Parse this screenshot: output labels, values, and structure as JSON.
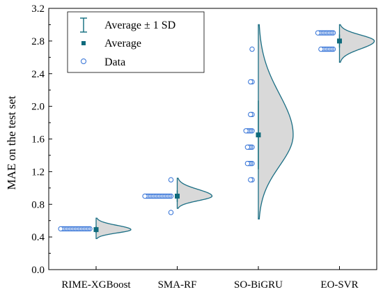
{
  "chart_data": {
    "type": "violin",
    "title": "",
    "xlabel": "",
    "ylabel": "MAE on the test set",
    "ylim": [
      0.0,
      3.2
    ],
    "yticks": [
      0.0,
      0.4,
      0.8,
      1.2,
      1.6,
      2.0,
      2.4,
      2.8,
      3.2
    ],
    "ytick_labels": [
      "0.0",
      "0.4",
      "0.8",
      "1.2",
      "1.6",
      "2.0",
      "2.4",
      "2.8",
      "3.2"
    ],
    "categories": [
      "RIME-XGBoost",
      "SMA-RF",
      "SO-BiGRU",
      "EO-SVR"
    ],
    "groups": [
      {
        "name": "RIME-XGBoost",
        "mean": 0.49,
        "sd": 0.04,
        "violin_range": [
          0.38,
          0.63
        ],
        "points": [
          0.5,
          0.5,
          0.5,
          0.5,
          0.5,
          0.5,
          0.5,
          0.5,
          0.5,
          0.5,
          0.5,
          0.5,
          0.5,
          0.5,
          0.5,
          0.5,
          0.5,
          0.5,
          0.5,
          0.5
        ]
      },
      {
        "name": "SMA-RF",
        "mean": 0.9,
        "sd": 0.07,
        "violin_range": [
          0.75,
          1.12
        ],
        "points": [
          1.1,
          0.9,
          0.9,
          0.9,
          0.9,
          0.9,
          0.9,
          0.9,
          0.9,
          0.9,
          0.9,
          0.9,
          0.9,
          0.9,
          0.9,
          0.9,
          0.9,
          0.9,
          0.9,
          0.7
        ]
      },
      {
        "name": "SO-BiGRU",
        "mean": 1.65,
        "sd": 0.42,
        "violin_range": [
          0.62,
          3.0
        ],
        "points": [
          2.7,
          2.3,
          2.3,
          1.9,
          1.9,
          1.7,
          1.7,
          1.7,
          1.7,
          1.7,
          1.5,
          1.5,
          1.5,
          1.5,
          1.3,
          1.3,
          1.3,
          1.3,
          1.1,
          1.1
        ]
      },
      {
        "name": "EO-SVR",
        "mean": 2.8,
        "sd": 0.08,
        "violin_range": [
          2.54,
          3.0
        ],
        "points": [
          2.9,
          2.9,
          2.9,
          2.9,
          2.9,
          2.9,
          2.9,
          2.9,
          2.9,
          2.9,
          2.9,
          2.7,
          2.7,
          2.7,
          2.7,
          2.7,
          2.7,
          2.7,
          2.7,
          2.7
        ]
      }
    ],
    "legend": {
      "placement": "top-left",
      "entries": [
        {
          "icon": "error-bar-icon",
          "label": "Average ± 1 SD"
        },
        {
          "icon": "filled-square-icon",
          "label": "Average"
        },
        {
          "icon": "open-circle-icon",
          "label": "Data"
        }
      ]
    },
    "grid": false,
    "colors": {
      "violin_fill": "#d9d9d9",
      "violin_stroke": "#1a6e84",
      "mean_marker": "#0f6b7d",
      "data_stroke": "#2f6fd6",
      "data_fill": "#ffffff",
      "axis": "#000000"
    }
  }
}
